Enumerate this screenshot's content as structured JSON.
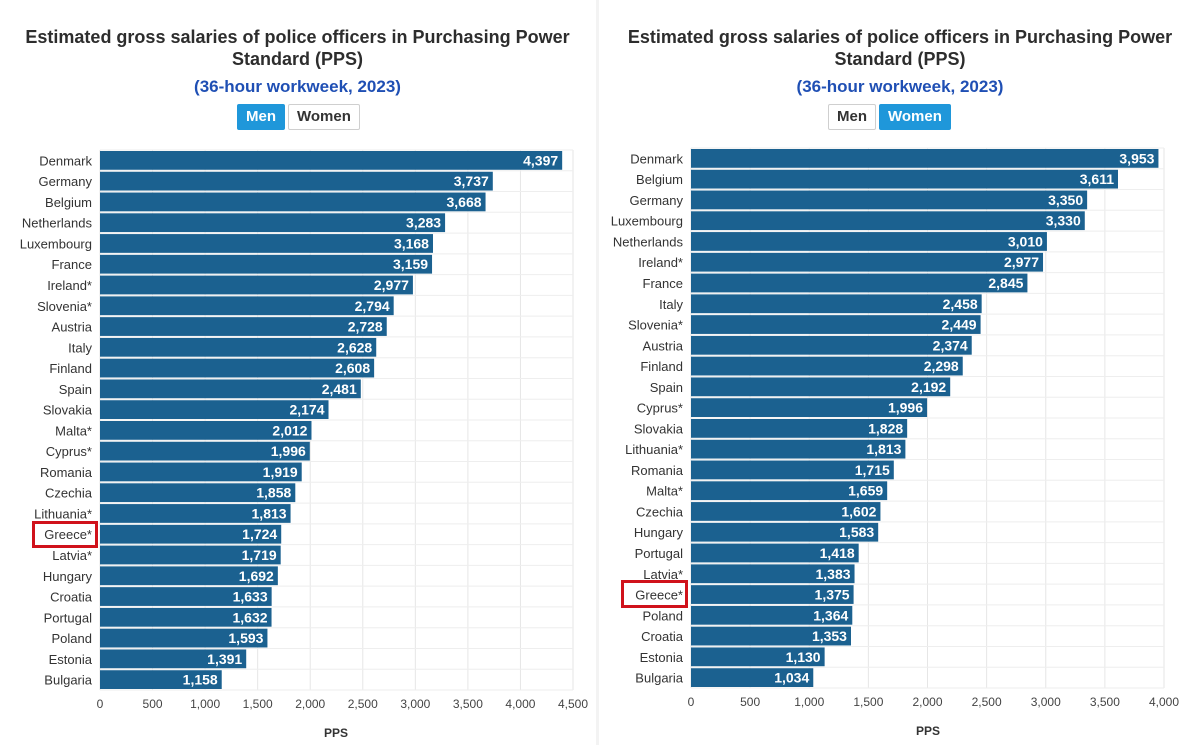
{
  "chart_data": [
    {
      "type": "bar",
      "orientation": "horizontal",
      "title": "Estimated gross salaries of police officers in Purchasing Power Standard (PPS)",
      "subtitle": "(36-hour workweek, 2023)",
      "toggle": {
        "options": [
          "Men",
          "Women"
        ],
        "selected": "Men"
      },
      "categories": [
        "Denmark",
        "Germany",
        "Belgium",
        "Netherlands",
        "Luxembourg",
        "France",
        "Ireland*",
        "Slovenia*",
        "Austria",
        "Italy",
        "Finland",
        "Spain",
        "Slovakia",
        "Malta*",
        "Cyprus*",
        "Romania",
        "Czechia",
        "Lithuania*",
        "Greece*",
        "Latvia*",
        "Hungary",
        "Croatia",
        "Portugal",
        "Poland",
        "Estonia",
        "Bulgaria"
      ],
      "values": [
        4397,
        3737,
        3668,
        3283,
        3168,
        3159,
        2977,
        2794,
        2728,
        2628,
        2608,
        2481,
        2174,
        2012,
        1996,
        1919,
        1858,
        1813,
        1724,
        1719,
        1692,
        1633,
        1632,
        1593,
        1391,
        1158
      ],
      "value_labels": [
        "4,397",
        "3,737",
        "3,668",
        "3,283",
        "3,168",
        "3,159",
        "2,977",
        "2,794",
        "2,728",
        "2,628",
        "2,608",
        "2,481",
        "2,174",
        "2,012",
        "1,996",
        "1,919",
        "1,858",
        "1,813",
        "1,724",
        "1,719",
        "1,692",
        "1,633",
        "1,632",
        "1,593",
        "1,391",
        "1,158"
      ],
      "xticks": [
        "0",
        "500",
        "1,000",
        "1,500",
        "2,000",
        "2,500",
        "3,000",
        "3,500",
        "4,000",
        "4,500"
      ],
      "xlim": [
        0,
        4500
      ],
      "xlabel": "PPS",
      "highlighted": "Greece*",
      "bar_color": "#1b6190",
      "highlight_color": "#d0121b"
    },
    {
      "type": "bar",
      "orientation": "horizontal",
      "title": "Estimated gross salaries of police officers in Purchasing Power Standard (PPS)",
      "subtitle": "(36-hour workweek, 2023)",
      "toggle": {
        "options": [
          "Men",
          "Women"
        ],
        "selected": "Women"
      },
      "categories": [
        "Denmark",
        "Belgium",
        "Germany",
        "Luxembourg",
        "Netherlands",
        "Ireland*",
        "France",
        "Italy",
        "Slovenia*",
        "Austria",
        "Finland",
        "Spain",
        "Cyprus*",
        "Slovakia",
        "Lithuania*",
        "Romania",
        "Malta*",
        "Czechia",
        "Hungary",
        "Portugal",
        "Latvia*",
        "Greece*",
        "Poland",
        "Croatia",
        "Estonia",
        "Bulgaria"
      ],
      "values": [
        3953,
        3611,
        3350,
        3330,
        3010,
        2977,
        2845,
        2458,
        2449,
        2374,
        2298,
        2192,
        1996,
        1828,
        1813,
        1715,
        1659,
        1602,
        1583,
        1418,
        1383,
        1375,
        1364,
        1353,
        1130,
        1034
      ],
      "value_labels": [
        "3,953",
        "3,611",
        "3,350",
        "3,330",
        "3,010",
        "2,977",
        "2,845",
        "2,458",
        "2,449",
        "2,374",
        "2,298",
        "2,192",
        "1,996",
        "1,828",
        "1,813",
        "1,715",
        "1,659",
        "1,602",
        "1,583",
        "1,418",
        "1,383",
        "1,375",
        "1,364",
        "1,353",
        "1,130",
        "1,034"
      ],
      "xticks": [
        "0",
        "500",
        "1,000",
        "1,500",
        "2,000",
        "2,500",
        "3,000",
        "3,500",
        "4,000"
      ],
      "xlim": [
        0,
        4000
      ],
      "xlabel": "PPS",
      "highlighted": "Greece*",
      "bar_color": "#1b6190",
      "highlight_color": "#d0121b"
    }
  ]
}
